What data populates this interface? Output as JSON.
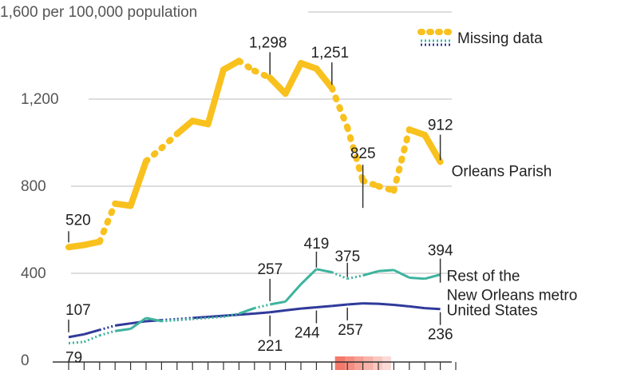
{
  "chart_data": {
    "type": "line",
    "y_axis": {
      "ylim": [
        0,
        1600
      ],
      "ticks": [
        {
          "value": 0,
          "label": "0"
        },
        {
          "value": 400,
          "label": "400"
        },
        {
          "value": 800,
          "label": "800"
        },
        {
          "value": 1200,
          "label": "1,200"
        },
        {
          "value": 1600,
          "label": "1,600 per 100,000 population"
        }
      ]
    },
    "x_axis": {
      "xlim": [
        1985,
        2010
      ]
    },
    "legend": {
      "label": "Missing data",
      "position": "top-right"
    },
    "colors": {
      "orleans": "#F9C11E",
      "metro": "#3DB39E",
      "us": "#2F3A9A",
      "gridline": "#BBBBBB",
      "axis": "#333333",
      "leader": "#333333",
      "highlight": "#F26B5B"
    },
    "series": [
      {
        "key": "orleans",
        "name": "Orleans Parish",
        "points": [
          [
            1985,
            520
          ],
          [
            1986,
            530
          ],
          [
            1987,
            545
          ],
          [
            1988,
            720
          ],
          [
            1989,
            710
          ],
          [
            1990,
            915
          ],
          [
            1991,
            975
          ],
          [
            1992,
            1040
          ],
          [
            1993,
            1100
          ],
          [
            1994,
            1085
          ],
          [
            1995,
            1335
          ],
          [
            1996,
            1375
          ],
          [
            1997,
            1330
          ],
          [
            1998,
            1298
          ],
          [
            1999,
            1225
          ],
          [
            2000,
            1365
          ],
          [
            2001,
            1340
          ],
          [
            2002,
            1251
          ],
          [
            2003,
            1070
          ],
          [
            2004,
            825
          ],
          [
            2005,
            800
          ],
          [
            2006,
            780
          ],
          [
            2007,
            1060
          ],
          [
            2008,
            1035
          ],
          [
            2009,
            912
          ]
        ],
        "missing_segments": [
          [
            1987,
            1988
          ],
          [
            1990,
            1992
          ],
          [
            1996,
            1998
          ],
          [
            2002,
            2007
          ]
        ]
      },
      {
        "key": "metro",
        "name": "Rest of the New Orleans metro",
        "name_lines": [
          "Rest of the",
          "New Orleans metro"
        ],
        "points": [
          [
            1985,
            79
          ],
          [
            1986,
            85
          ],
          [
            1987,
            115
          ],
          [
            1988,
            135
          ],
          [
            1989,
            145
          ],
          [
            1990,
            195
          ],
          [
            1991,
            180
          ],
          [
            1992,
            185
          ],
          [
            1993,
            190
          ],
          [
            1994,
            195
          ],
          [
            1995,
            200
          ],
          [
            1996,
            215
          ],
          [
            1997,
            240
          ],
          [
            1998,
            257
          ],
          [
            1999,
            270
          ],
          [
            2000,
            350
          ],
          [
            2001,
            419
          ],
          [
            2002,
            405
          ],
          [
            2003,
            375
          ],
          [
            2004,
            390
          ],
          [
            2005,
            410
          ],
          [
            2006,
            415
          ],
          [
            2007,
            380
          ],
          [
            2008,
            375
          ],
          [
            2009,
            394
          ]
        ],
        "missing_segments": [
          [
            1985,
            1988
          ],
          [
            1991,
            1996
          ],
          [
            1997,
            1998
          ],
          [
            2002,
            2004
          ]
        ]
      },
      {
        "key": "us",
        "name": "United States",
        "points": [
          [
            1985,
            107
          ],
          [
            1986,
            120
          ],
          [
            1987,
            140
          ],
          [
            1988,
            160
          ],
          [
            1989,
            170
          ],
          [
            1990,
            180
          ],
          [
            1991,
            185
          ],
          [
            1992,
            190
          ],
          [
            1993,
            195
          ],
          [
            1994,
            200
          ],
          [
            1995,
            205
          ],
          [
            1996,
            210
          ],
          [
            1997,
            215
          ],
          [
            1998,
            221
          ],
          [
            1999,
            230
          ],
          [
            2000,
            238
          ],
          [
            2001,
            244
          ],
          [
            2002,
            250
          ],
          [
            2003,
            257
          ],
          [
            2004,
            262
          ],
          [
            2005,
            260
          ],
          [
            2006,
            255
          ],
          [
            2007,
            248
          ],
          [
            2008,
            240
          ],
          [
            2009,
            236
          ]
        ],
        "missing_segments": [
          [
            1987,
            1988
          ],
          [
            1991,
            1993
          ]
        ]
      }
    ],
    "annotations": [
      {
        "series": "orleans",
        "x": 1985,
        "y": 520,
        "label": "520",
        "dir": "up"
      },
      {
        "series": "orleans",
        "x": 1998,
        "y": 1298,
        "label": "1,298",
        "dir": "up"
      },
      {
        "series": "orleans",
        "x": 2002,
        "y": 1251,
        "label": "1,251",
        "dir": "up"
      },
      {
        "series": "orleans",
        "x": 2004,
        "y": 825,
        "label": "825",
        "dir": "up"
      },
      {
        "series": "orleans",
        "x": 2009,
        "y": 912,
        "label": "912",
        "dir": "up"
      },
      {
        "series": "metro",
        "x": 1985,
        "y": 79,
        "label": "79",
        "dir": "down"
      },
      {
        "series": "metro",
        "x": 1998,
        "y": 257,
        "label": "257",
        "dir": "up"
      },
      {
        "series": "metro",
        "x": 2001,
        "y": 419,
        "label": "419",
        "dir": "up"
      },
      {
        "series": "metro",
        "x": 2003,
        "y": 375,
        "label": "375",
        "dir": "up"
      },
      {
        "series": "metro",
        "x": 2009,
        "y": 394,
        "label": "394",
        "dir": "up"
      },
      {
        "series": "us",
        "x": 1985,
        "y": 107,
        "label": "107",
        "dir": "up"
      },
      {
        "series": "us",
        "x": 1998,
        "y": 221,
        "label": "221",
        "dir": "down"
      },
      {
        "series": "us",
        "x": 2001,
        "y": 244,
        "label": "244",
        "dir": "down"
      },
      {
        "series": "us",
        "x": 2003,
        "y": 257,
        "label": "257",
        "dir": "down"
      },
      {
        "series": "us",
        "x": 2009,
        "y": 236,
        "label": "236",
        "dir": "down"
      }
    ]
  }
}
